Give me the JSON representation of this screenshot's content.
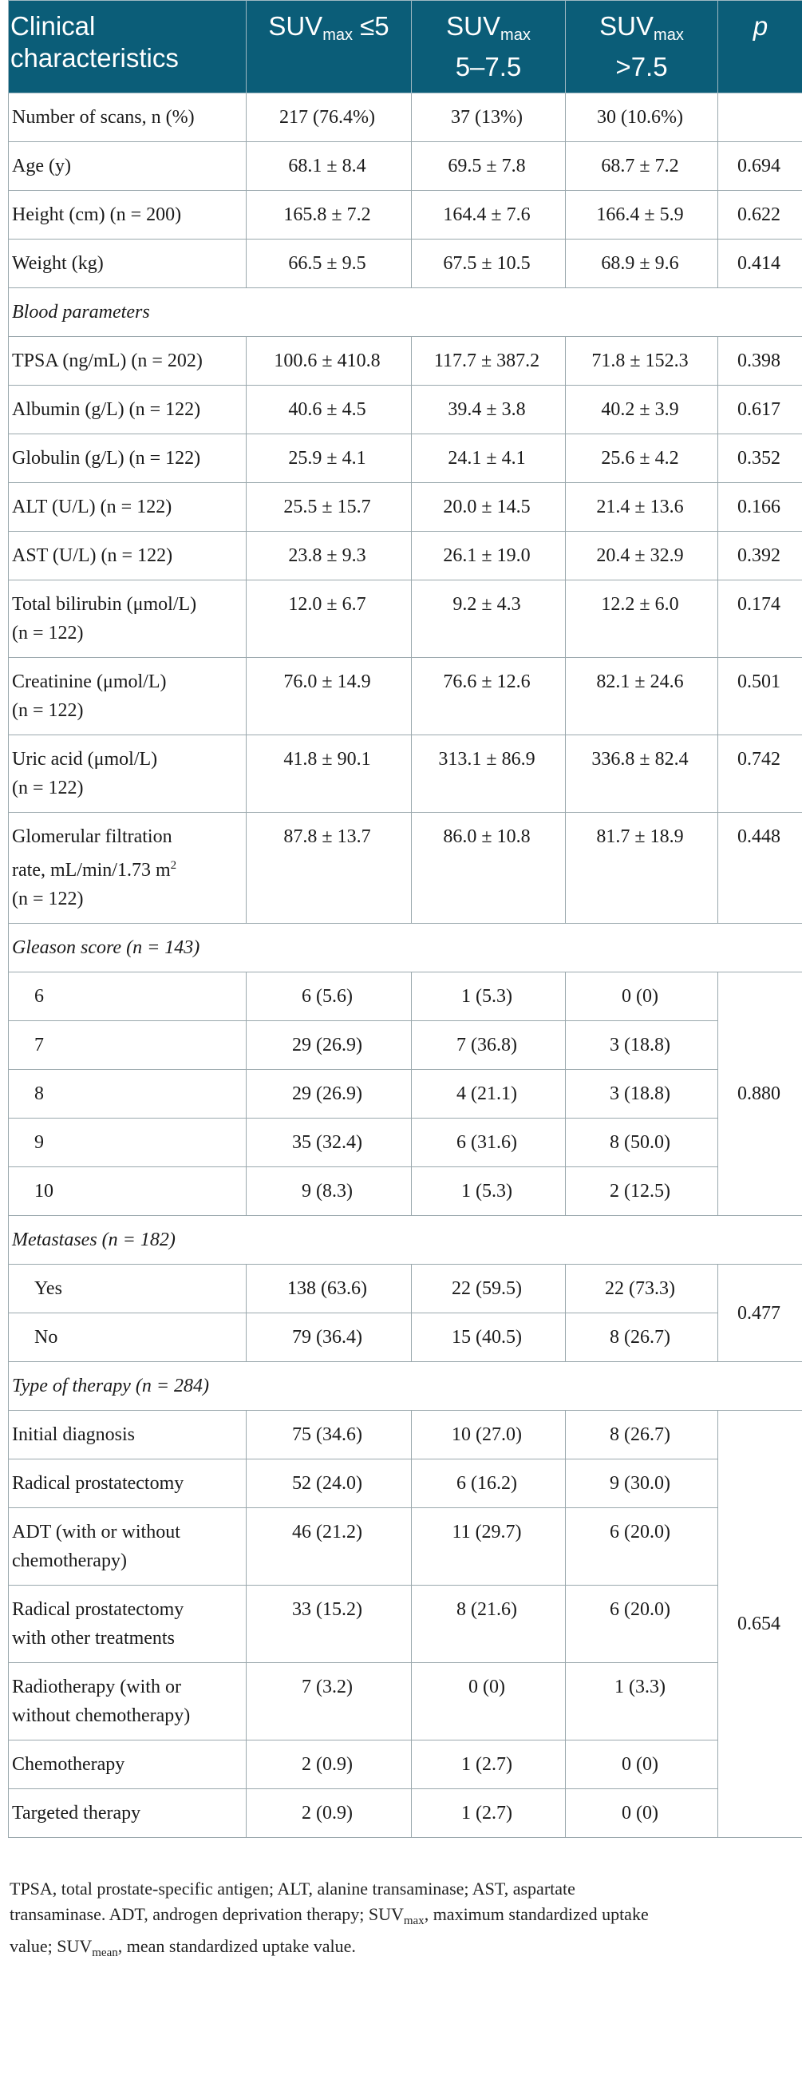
{
  "header": {
    "col1": "Clinical characteristics",
    "col2_main": "SUV",
    "col2_sub": "max",
    "col2_tail": " ≤5",
    "col3_main": "SUV",
    "col3_sub": "max",
    "col3_tail": "5–7.5",
    "col4_main": "SUV",
    "col4_sub": "max",
    "col4_tail": ">7.5",
    "col5": "p"
  },
  "rows": {
    "scans": {
      "label": "Number of scans, n (%)",
      "a": "217 (76.4%)",
      "b": "37 (13%)",
      "c": "30 (10.6%)",
      "p": ""
    },
    "age": {
      "label": "Age (y)",
      "a": "68.1 ± 8.4",
      "b": "69.5 ± 7.8",
      "c": "68.7 ± 7.2",
      "p": "0.694"
    },
    "height": {
      "label": "Height (cm) (n = 200)",
      "a": "165.8 ± 7.2",
      "b": "164.4 ± 7.6",
      "c": "166.4 ± 5.9",
      "p": "0.622"
    },
    "weight": {
      "label": "Weight (kg)",
      "a": "66.5 ± 9.5",
      "b": "67.5 ± 10.5",
      "c": "68.9 ± 9.6",
      "p": "0.414"
    },
    "blood": {
      "label": "Blood parameters"
    },
    "tpsa": {
      "label": "TPSA (ng/mL) (n = 202)",
      "a": "100.6 ± 410.8",
      "b": "117.7 ± 387.2",
      "c": "71.8 ± 152.3",
      "p": "0.398"
    },
    "albumin": {
      "label": "Albumin (g/L) (n = 122)",
      "a": "40.6 ± 4.5",
      "b": "39.4 ± 3.8",
      "c": "40.2 ± 3.9",
      "p": "0.617"
    },
    "globulin": {
      "label": "Globulin (g/L) (n = 122)",
      "a": "25.9 ± 4.1",
      "b": "24.1 ± 4.1",
      "c": "25.6 ± 4.2",
      "p": "0.352"
    },
    "alt": {
      "label": "ALT (U/L) (n = 122)",
      "a": "25.5 ± 15.7",
      "b": "20.0 ± 14.5",
      "c": "21.4 ± 13.6",
      "p": "0.166"
    },
    "ast": {
      "label": "AST (U/L) (n = 122)",
      "a": "23.8 ± 9.3",
      "b": "26.1 ± 19.0",
      "c": "20.4 ± 32.9",
      "p": "0.392"
    },
    "bili": {
      "label1": "Total bilirubin (μmol/L)",
      "label2": "(n = 122)",
      "a": "12.0 ± 6.7",
      "b": "9.2 ± 4.3",
      "c": "12.2 ± 6.0",
      "p": "0.174"
    },
    "creat": {
      "label1": "Creatinine (μmol/L)",
      "label2": "(n = 122)",
      "a": "76.0 ± 14.9",
      "b": "76.6 ± 12.6",
      "c": "82.1 ± 24.6",
      "p": "0.501"
    },
    "uric": {
      "label1": "Uric acid (μmol/L)",
      "label2": "(n = 122)",
      "a": "41.8 ± 90.1",
      "b": "313.1 ± 86.9",
      "c": "336.8 ± 82.4",
      "p": "0.742"
    },
    "gfr": {
      "label1": "Glomerular filtration",
      "label2a": "rate, mL/min/1.73 m",
      "label2sup": "2",
      "label3": "(n = 122)",
      "a": "87.8 ± 13.7",
      "b": "86.0 ± 10.8",
      "c": "81.7 ± 18.9",
      "p": "0.448"
    },
    "gleason": {
      "label": "Gleason score (n = 143)",
      "p": "0.880",
      "items": [
        {
          "label": "6",
          "a": "6 (5.6)",
          "b": "1 (5.3)",
          "c": "0 (0)"
        },
        {
          "label": "7",
          "a": "29 (26.9)",
          "b": "7 (36.8)",
          "c": "3 (18.8)"
        },
        {
          "label": "8",
          "a": "29 (26.9)",
          "b": "4 (21.1)",
          "c": "3 (18.8)"
        },
        {
          "label": "9",
          "a": "35 (32.4)",
          "b": "6 (31.6)",
          "c": "8 (50.0)"
        },
        {
          "label": "10",
          "a": "9 (8.3)",
          "b": "1 (5.3)",
          "c": "2 (12.5)"
        }
      ]
    },
    "meta": {
      "label": "Metastases (n = 182)",
      "p": "0.477",
      "items": [
        {
          "label": "Yes",
          "a": "138 (63.6)",
          "b": "22 (59.5)",
          "c": "22 (73.3)"
        },
        {
          "label": "No",
          "a": "79 (36.4)",
          "b": "15 (40.5)",
          "c": "8 (26.7)"
        }
      ]
    },
    "therapy": {
      "label": "Type of therapy (n = 284)",
      "p": "0.654",
      "items": [
        {
          "label1": "Initial diagnosis",
          "label2": "",
          "a": "75 (34.6)",
          "b": "10 (27.0)",
          "c": "8 (26.7)"
        },
        {
          "label1": "Radical prostatectomy",
          "label2": "",
          "a": "52 (24.0)",
          "b": "6 (16.2)",
          "c": "9 (30.0)"
        },
        {
          "label1": "ADT (with or without",
          "label2": "chemotherapy)",
          "a": "46 (21.2)",
          "b": "11 (29.7)",
          "c": "6 (20.0)"
        },
        {
          "label1": "Radical prostatectomy",
          "label2": "with other treatments",
          "a": "33 (15.2)",
          "b": "8 (21.6)",
          "c": "6 (20.0)"
        },
        {
          "label1": "Radiotherapy (with or",
          "label2": "without chemotherapy)",
          "a": "7 (3.2)",
          "b": "0 (0)",
          "c": "1 (3.3)"
        },
        {
          "label1": "Chemotherapy",
          "label2": "",
          "a": "2 (0.9)",
          "b": "1 (2.7)",
          "c": "0 (0)"
        },
        {
          "label1": "Targeted therapy",
          "label2": "",
          "a": "2 (0.9)",
          "b": "1 (2.7)",
          "c": "0 (0)"
        }
      ]
    }
  },
  "footnote": {
    "line1": "TPSA, total prostate-specific antigen; ALT, alanine transaminase; AST, aspartate",
    "line2": "transaminase. ADT, androgen deprivation therapy; SUV",
    "line2sub": "max",
    "line2tail": ", maximum standardized uptake",
    "line3a": "value; SUV",
    "line3sub": "mean",
    "line3tail": ", mean standardized uptake value."
  }
}
